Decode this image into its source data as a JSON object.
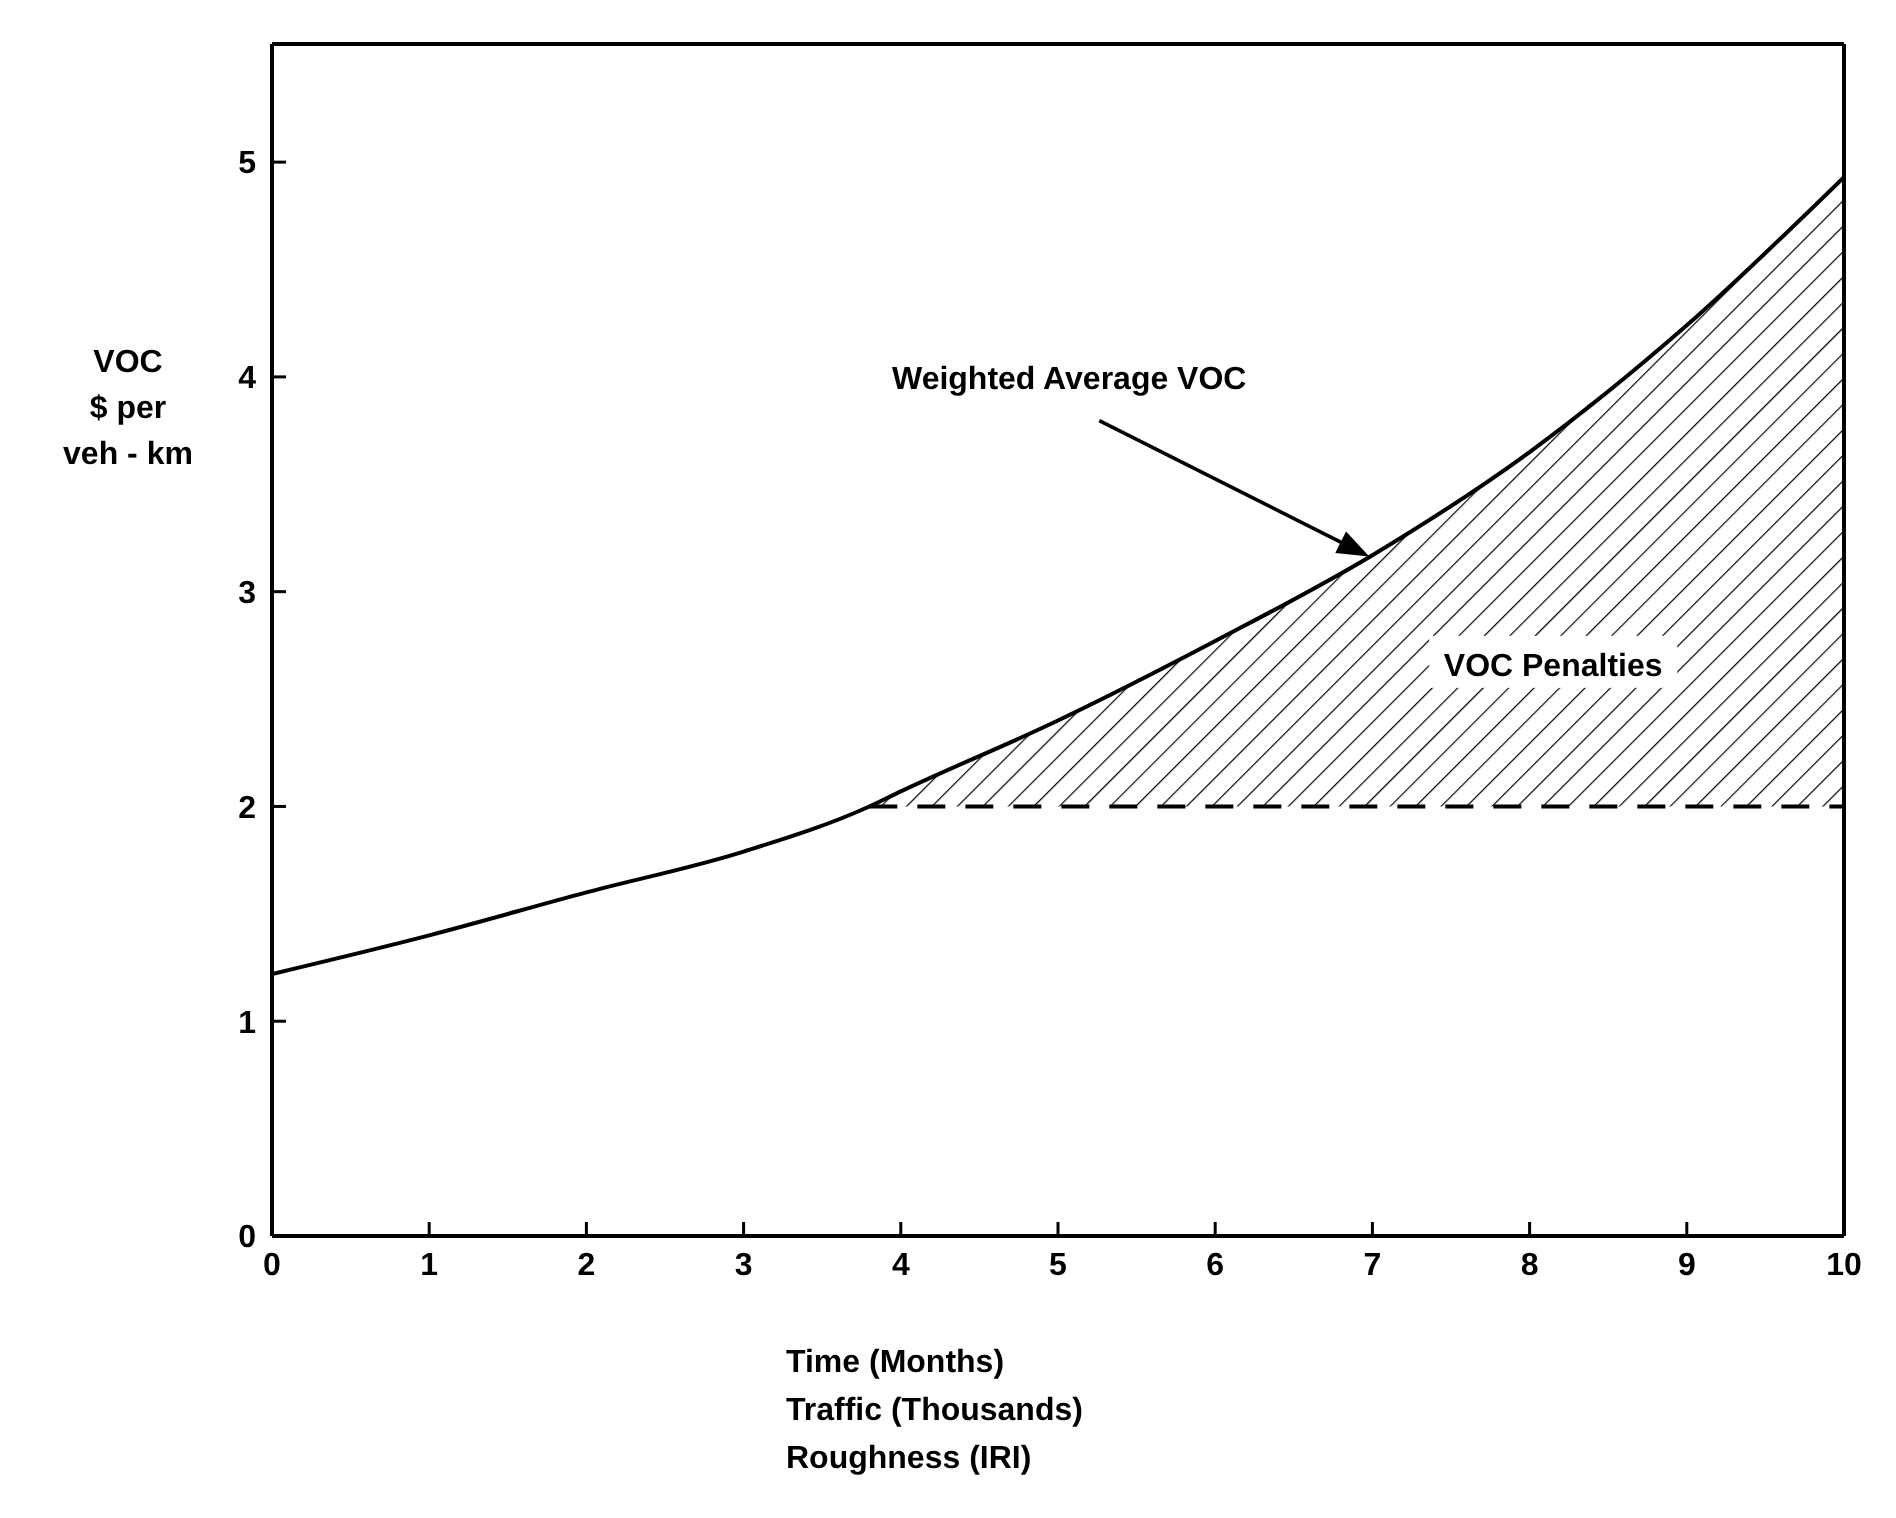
{
  "chart_data": {
    "type": "line",
    "xlabel": "Time  (Months)\nTraffic  (Thousands)\nRoughness  (IRI)",
    "ylabel": "VOC\n$ per\nveh - km",
    "xlim": [
      0,
      10
    ],
    "ylim": [
      0,
      5.55
    ],
    "xticks": [
      0,
      1,
      2,
      3,
      4,
      5,
      6,
      7,
      8,
      9,
      10
    ],
    "yticks": [
      0,
      1,
      2,
      3,
      4,
      5
    ],
    "grid": false,
    "legend": false,
    "series": [
      {
        "color": "#000000",
        "x": [
          0,
          1,
          2,
          3,
          3.8,
          4,
          5,
          6,
          7,
          8,
          9,
          10
        ],
        "values": [
          1.22,
          1.4,
          1.6,
          1.79,
          2.0,
          2.07,
          2.4,
          2.77,
          3.17,
          3.65,
          4.24,
          4.93
        ],
        "lower": [
          null,
          null,
          null,
          null,
          2,
          2,
          2,
          2,
          2,
          2,
          2,
          2
        ],
        "upper": [
          null,
          null,
          null,
          null,
          2.0,
          2.07,
          2.4,
          2.77,
          3.17,
          3.65,
          4.24,
          4.93
        ]
      },
      {
        "color": "#000000",
        "line_style": "dashed",
        "x": [
          3.8,
          10
        ],
        "values": [
          2,
          2
        ]
      }
    ],
    "annotations": [
      "Weighted Average VOC",
      "VOC Penalties"
    ]
  }
}
